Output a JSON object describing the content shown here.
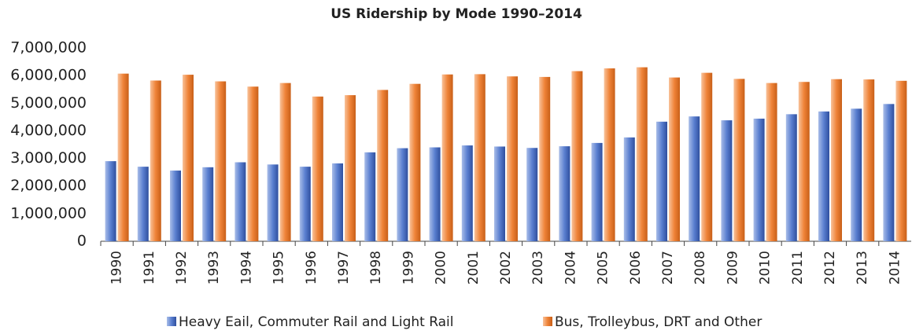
{
  "chart_data": {
    "type": "bar",
    "title": "US Ridership by Mode 1990–2014",
    "categories": [
      "1990",
      "1991",
      "1992",
      "1993",
      "1994",
      "1995",
      "1996",
      "1997",
      "1998",
      "1999",
      "2000",
      "2001",
      "2002",
      "2003",
      "2004",
      "2005",
      "2006",
      "2007",
      "2008",
      "2009",
      "2010",
      "2011",
      "2012",
      "2013",
      "2014"
    ],
    "series": [
      {
        "name": "Heavy Eail, Commuter Rail and Light Rail",
        "color": "#4a6fc4",
        "values": [
          2900000,
          2700000,
          2560000,
          2680000,
          2860000,
          2780000,
          2700000,
          2820000,
          3220000,
          3370000,
          3400000,
          3470000,
          3430000,
          3380000,
          3440000,
          3560000,
          3760000,
          4330000,
          4520000,
          4380000,
          4440000,
          4600000,
          4700000,
          4800000,
          4970000
        ]
      },
      {
        "name": "Bus, Trolleybus, DRT and Other",
        "color": "#ee7d32",
        "values": [
          6070000,
          5820000,
          6030000,
          5790000,
          5600000,
          5730000,
          5240000,
          5290000,
          5480000,
          5700000,
          6040000,
          6050000,
          5970000,
          5950000,
          6160000,
          6260000,
          6300000,
          5930000,
          6100000,
          5880000,
          5730000,
          5770000,
          5870000,
          5860000,
          5810000
        ]
      }
    ],
    "ylim": [
      0,
      7000000
    ],
    "yticks": [
      0,
      {
        "value": 1000000,
        "label": "1,000,000"
      },
      {
        "value": 2000000,
        "label": "2,000,000"
      },
      {
        "value": 3000000,
        "label": "3,000,000"
      },
      {
        "value": 4000000,
        "label": "4,000,000"
      },
      {
        "value": 5000000,
        "label": "5,000,000"
      },
      {
        "value": 6000000,
        "label": "6,000,000"
      },
      {
        "value": 7000000,
        "label": "7,000,000"
      }
    ],
    "grid": false,
    "legend": "bottom"
  }
}
